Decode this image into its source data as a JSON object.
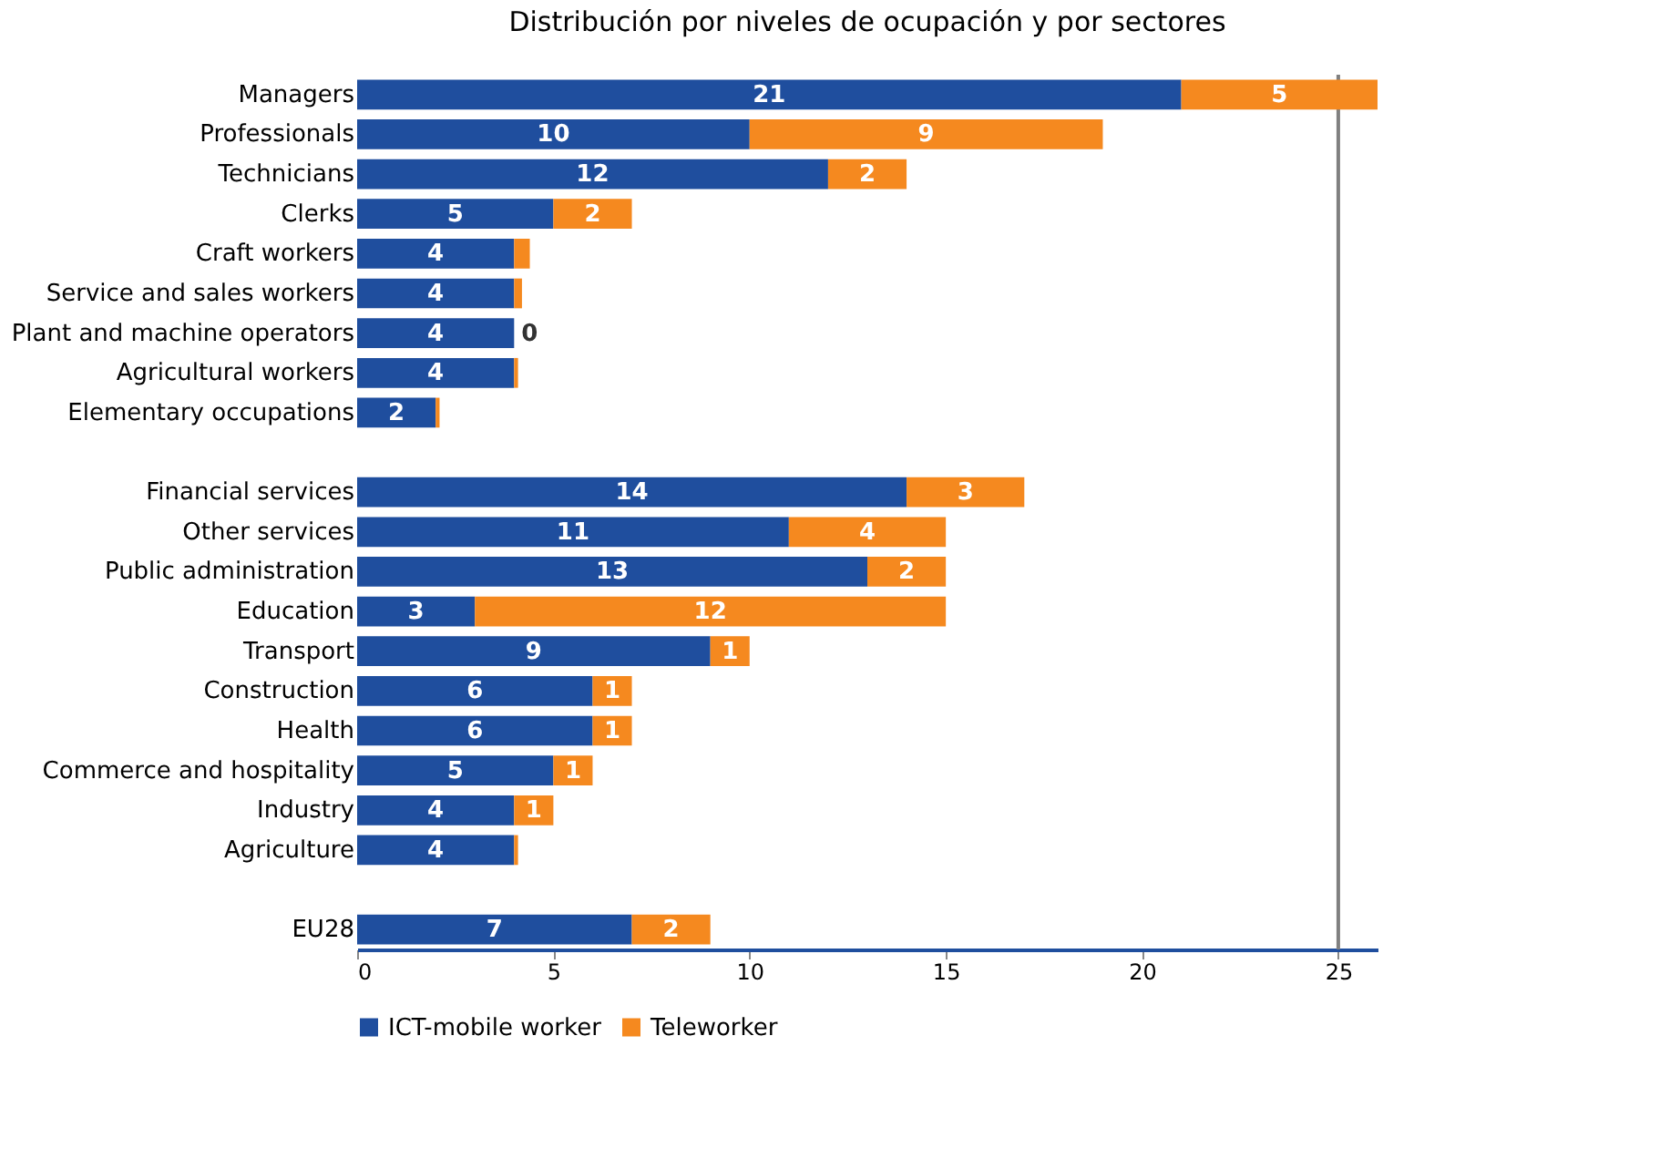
{
  "chart_data": {
    "type": "bar",
    "orientation": "horizontal",
    "stacked": true,
    "title": "Distribución por niveles de ocupación y por sectores",
    "categories": [
      "Managers",
      "Professionals",
      "Technicians",
      "Clerks",
      "Craft workers",
      "Service and sales workers",
      "Plant and machine operators",
      "Agricultural workers",
      "Elementary occupations",
      null,
      "Financial services",
      "Other services",
      "Public administration",
      "Education",
      "Transport",
      "Construction",
      "Health",
      "Commerce and hospitality",
      "Industry",
      "Agriculture",
      null,
      "EU28"
    ],
    "series": [
      {
        "name": "ICT-mobile worker",
        "color": "#1f4e9e",
        "values": [
          21,
          10,
          12,
          5,
          4,
          4,
          4,
          4,
          2,
          null,
          14,
          11,
          13,
          3,
          9,
          6,
          6,
          5,
          4,
          4,
          null,
          7
        ],
        "value_labels": [
          "21",
          "10",
          "12",
          "5",
          "4",
          "4",
          "4",
          "4",
          "2",
          null,
          "14",
          "11",
          "13",
          "3",
          "9",
          "6",
          "6",
          "5",
          "4",
          "4",
          null,
          "7"
        ]
      },
      {
        "name": "Teleworker",
        "color": "#f5891f",
        "values": [
          5,
          9,
          2,
          2,
          0.4,
          0.2,
          0,
          0.1,
          0.1,
          null,
          3,
          4,
          2,
          12,
          1,
          1,
          1,
          1,
          1,
          0.1,
          null,
          2
        ],
        "value_labels": [
          "5",
          "9",
          "2",
          "2",
          null,
          null,
          "0",
          null,
          null,
          null,
          "3",
          "4",
          "2",
          "12",
          "1",
          "1",
          "1",
          "1",
          "1",
          null,
          null,
          "2"
        ]
      }
    ],
    "xlim": [
      0,
      26
    ],
    "xticks": [
      0,
      5,
      10,
      15,
      20,
      25
    ],
    "grid": false,
    "legend": "bottom",
    "ref_lines": [
      {
        "axis": "x",
        "value": 25,
        "color": "#808080"
      }
    ]
  }
}
